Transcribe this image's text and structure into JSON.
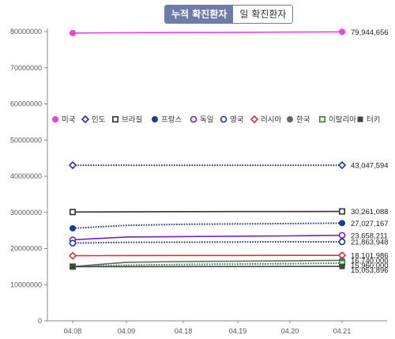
{
  "toggle": {
    "cumulative_label": "누적 확진환자",
    "daily_label": "일 확진환자"
  },
  "chart_data": {
    "type": "line",
    "title": "",
    "xlabel": "",
    "ylabel": "",
    "categories": [
      "04.08",
      "04.09",
      "04.18",
      "04.19",
      "04.20",
      "04.21"
    ],
    "yticks": [
      0,
      10000000,
      20000000,
      30000000,
      40000000,
      50000000,
      60000000,
      70000000,
      80000000
    ],
    "ytick_labels": [
      "0",
      "10000000",
      "20000000",
      "30000000",
      "40000000",
      "50000000",
      "60000000",
      "70000000",
      "80000000"
    ],
    "ylim": [
      0,
      80000000
    ],
    "legend_position": "middle-left",
    "grid": false,
    "series": [
      {
        "name": "미국",
        "color": "#ee3ee8",
        "marker": "filled-circle",
        "dash": "solid",
        "values": [
          79600000,
          79700000,
          79750000,
          79800000,
          79870000,
          79944656
        ],
        "end_label": "79,944,656"
      },
      {
        "name": "인도",
        "color": "#2230c8",
        "marker": "diamond-open",
        "dash": "dotted",
        "values": [
          43047594,
          43047594,
          43047594,
          43047594,
          43047594,
          43047594
        ],
        "end_label": "43,047,594"
      },
      {
        "name": "브라질",
        "color": "#333333",
        "marker": "square-open",
        "dash": "solid",
        "values": [
          30100000,
          30150000,
          30200000,
          30220000,
          30240000,
          30261088
        ],
        "end_label": "30,261,088"
      },
      {
        "name": "프랑스",
        "color": "#1f3a99",
        "marker": "filled-circle",
        "dash": "dotted",
        "values": [
          25600000,
          26400000,
          26700000,
          26800000,
          26900000,
          27027167
        ],
        "end_label": "27,027,167"
      },
      {
        "name": "독일",
        "color": "#7a1fc0",
        "marker": "circle-open",
        "dash": "solid",
        "values": [
          22400000,
          23200000,
          23300000,
          23400000,
          23500000,
          23658211
        ],
        "end_label": "23,658,211"
      },
      {
        "name": "영국",
        "color": "#1f3a99",
        "marker": "circle-open",
        "dash": "dotted",
        "values": [
          21500000,
          21700000,
          21750000,
          21800000,
          21850000,
          21863948
        ],
        "end_label": "21,863,948"
      },
      {
        "name": "러시아",
        "color": "#e03030",
        "marker": "diamond-open",
        "dash": "solid",
        "values": [
          18000000,
          18050000,
          18070000,
          18080000,
          18090000,
          18101986
        ],
        "end_label": "18,101,986"
      },
      {
        "name": "한국",
        "color": "#666666",
        "marker": "filled-circle",
        "dash": "solid",
        "values": [
          15000000,
          16200000,
          16400000,
          16500000,
          16600000,
          16740000
        ],
        "end_label": "16,740,000"
      },
      {
        "name": "이탈리아",
        "color": "#2e8b2e",
        "marker": "square-open",
        "dash": "dotted",
        "values": [
          15000000,
          15400000,
          15600000,
          15700000,
          15800000,
          15960000
        ],
        "end_label": "15,960,000"
      },
      {
        "name": "터키",
        "color": "#444444",
        "marker": "filled-square",
        "dash": "solid",
        "values": [
          15000000,
          15000000,
          15010000,
          15020000,
          15040000,
          15053896
        ],
        "end_label": "15,053,896"
      }
    ]
  }
}
